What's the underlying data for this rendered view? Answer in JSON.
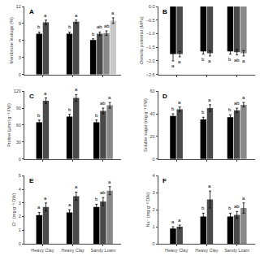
{
  "chart_data": [
    {
      "type": "bar",
      "title": "A",
      "ylabel": "Membrane leakage (%)",
      "categories": [
        null,
        null,
        null
      ],
      "tick_labels": "y",
      "ylim": [
        0,
        12
      ],
      "yticks": [
        0,
        3,
        6,
        9,
        12
      ],
      "grid": false,
      "series": [
        {
          "color": "#000000",
          "values": [
            7.2,
            7.2,
            6.1
          ],
          "errors": [
            0.3,
            0.3,
            0.2
          ],
          "annotations": [
            "b",
            "b",
            "b"
          ]
        },
        {
          "color": "#4a4a4a",
          "values": [
            9.2,
            9.3,
            7.2
          ],
          "errors": [
            0.4,
            0.3,
            0.3
          ],
          "annotations": [
            "a",
            "a",
            "ab"
          ]
        },
        {
          "color": "#888888",
          "values": [
            null,
            null,
            7.3
          ],
          "errors": [
            null,
            null,
            0.4
          ],
          "annotations": [
            null,
            null,
            "ab"
          ]
        },
        {
          "color": "#c8c8c8",
          "values": [
            null,
            null,
            9.5
          ],
          "errors": [
            null,
            null,
            0.5
          ],
          "annotations": [
            null,
            null,
            "a"
          ]
        }
      ]
    },
    {
      "type": "bar",
      "title": "B",
      "ylabel": "Osmotic potential (MPa)",
      "categories": [
        null,
        null,
        null
      ],
      "tick_labels": "y",
      "ylim": [
        -2.5,
        0
      ],
      "yticks": [
        {
          "value": -2.5,
          "label": "−2.5"
        },
        {
          "value": -2.0,
          "label": "−2.0"
        },
        {
          "value": -1.5,
          "label": "−1.5"
        },
        {
          "value": -1.0,
          "label": "−1.0"
        },
        {
          "value": -0.5,
          "label": "−0.5"
        },
        {
          "value": 0,
          "label": "0.0"
        }
      ],
      "grid": false,
      "series": [
        {
          "color": "#000000",
          "values": [
            -1.75,
            -1.65,
            -1.65
          ],
          "errors": [
            0.25,
            0.1,
            0.1
          ],
          "annotations": [
            "a",
            "b",
            "b"
          ]
        },
        {
          "color": "#4a4a4a",
          "values": [
            -1.75,
            -1.72,
            -1.68
          ],
          "errors": [
            0.1,
            0.1,
            0.1
          ],
          "annotations": [
            "a",
            "a",
            "ab"
          ]
        },
        {
          "color": "#888888",
          "values": [
            null,
            null,
            -1.72
          ],
          "errors": [
            null,
            null,
            0.1
          ],
          "annotations": [
            null,
            null,
            "a"
          ]
        }
      ]
    },
    {
      "type": "bar",
      "title": "C",
      "ylabel": "Proline (μmol g⁻¹ FW)",
      "categories": [
        null,
        null,
        null
      ],
      "tick_labels": "y",
      "ylim": [
        0,
        120
      ],
      "yticks": [
        0,
        30,
        60,
        90,
        120
      ],
      "grid": false,
      "series": [
        {
          "color": "#000000",
          "values": [
            65,
            75,
            65
          ],
          "errors": [
            4,
            4,
            4
          ],
          "annotations": [
            "b",
            "b",
            "b"
          ]
        },
        {
          "color": "#4a4a4a",
          "values": [
            103,
            108,
            85
          ],
          "errors": [
            5,
            6,
            5
          ],
          "annotations": [
            "a",
            "a",
            "ab"
          ]
        },
        {
          "color": "#888888",
          "values": [
            null,
            null,
            95
          ],
          "errors": [
            null,
            null,
            5
          ],
          "annotations": [
            null,
            null,
            "a"
          ]
        }
      ]
    },
    {
      "type": "bar",
      "title": "D",
      "ylabel": "Soluble sugar (mg g⁻¹ FW)",
      "categories": [
        null,
        null,
        null
      ],
      "tick_labels": "y",
      "ylim": [
        0,
        60
      ],
      "yticks": [
        0,
        20,
        40,
        60
      ],
      "grid": false,
      "series": [
        {
          "color": "#000000",
          "values": [
            38,
            35,
            37
          ],
          "errors": [
            2,
            2,
            2
          ],
          "annotations": [
            "b",
            "b",
            "b"
          ]
        },
        {
          "color": "#4a4a4a",
          "values": [
            44,
            45,
            43
          ],
          "errors": [
            2,
            3,
            2
          ],
          "annotations": [
            "a",
            "a",
            "ab"
          ]
        },
        {
          "color": "#888888",
          "values": [
            null,
            null,
            48
          ],
          "errors": [
            null,
            null,
            2
          ],
          "annotations": [
            null,
            null,
            "a"
          ]
        }
      ]
    },
    {
      "type": "bar",
      "title": "E",
      "ylabel": "Cl⁻ (mg g⁻¹ DW)",
      "categories": [
        "Heavy Clay",
        "Heavy Clay",
        "Sandy Loam"
      ],
      "ylim": [
        0,
        5
      ],
      "yticks": [
        0,
        1,
        2,
        3,
        4,
        5
      ],
      "grid": false,
      "series": [
        {
          "color": "#000000",
          "values": [
            2.1,
            2.3,
            2.7
          ],
          "errors": [
            0.2,
            0.2,
            0.2
          ],
          "annotations": [
            "a",
            "a",
            "b"
          ]
        },
        {
          "color": "#4a4a4a",
          "values": [
            2.7,
            3.5,
            3.1
          ],
          "errors": [
            0.3,
            0.3,
            0.3
          ],
          "annotations": [
            "a",
            "a",
            "ab"
          ]
        },
        {
          "color": "#888888",
          "values": [
            null,
            null,
            3.9
          ],
          "errors": [
            null,
            null,
            0.3
          ],
          "annotations": [
            null,
            null,
            "a"
          ]
        }
      ]
    },
    {
      "type": "bar",
      "title": "F",
      "ylabel": "Na⁻ (mg g⁻¹ DW)",
      "categories": [
        "Heavy Clay",
        "Heavy Clay",
        "Sandy Loam"
      ],
      "ylim": [
        0,
        4
      ],
      "yticks": [
        0,
        1,
        2,
        3,
        4
      ],
      "grid": false,
      "series": [
        {
          "color": "#000000",
          "values": [
            0.9,
            1.6,
            1.6
          ],
          "errors": [
            0.1,
            0.2,
            0.2
          ],
          "annotations": [
            "a",
            "b",
            "b"
          ]
        },
        {
          "color": "#4a4a4a",
          "values": [
            1.0,
            2.6,
            1.7
          ],
          "errors": [
            0.1,
            0.5,
            0.2
          ],
          "annotations": [
            "a",
            "a",
            "ab"
          ]
        },
        {
          "color": "#888888",
          "values": [
            null,
            null,
            2.1
          ],
          "errors": [
            null,
            null,
            0.3
          ],
          "annotations": [
            null,
            null,
            "a"
          ]
        }
      ]
    }
  ]
}
